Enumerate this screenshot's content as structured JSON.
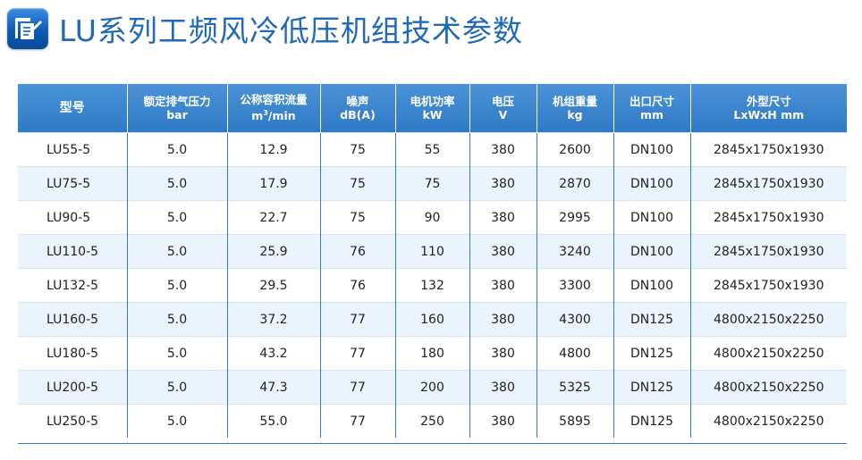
{
  "page": {
    "title": "LU系列工频风冷低压机组技术参数",
    "accent_color": "#1f69b7",
    "header_color": "#3a86cf",
    "icon": "document-pen-icon"
  },
  "table": {
    "headers": [
      {
        "line1": "型号",
        "line2": ""
      },
      {
        "line1": "额定排气压力",
        "line2": "bar"
      },
      {
        "line1": "公称容积流量",
        "line2_pre": "m",
        "line2_sup": "3",
        "line2_post": "/min"
      },
      {
        "line1": "噪声",
        "line2": "dB(A)"
      },
      {
        "line1": "电机功率",
        "line2": "kW"
      },
      {
        "line1": "电压",
        "line2": "V"
      },
      {
        "line1": "机组重量",
        "line2": "kg"
      },
      {
        "line1": "出口尺寸",
        "line2": "mm"
      },
      {
        "line1": "外型尺寸",
        "line2": "LxWxH mm"
      }
    ],
    "rows": [
      [
        "LU55-5",
        "5.0",
        "12.9",
        "75",
        "55",
        "380",
        "2600",
        "DN100",
        "2845x1750x1930"
      ],
      [
        "LU75-5",
        "5.0",
        "17.9",
        "75",
        "75",
        "380",
        "2870",
        "DN100",
        "2845x1750x1930"
      ],
      [
        "LU90-5",
        "5.0",
        "22.7",
        "75",
        "90",
        "380",
        "2995",
        "DN100",
        "2845x1750x1930"
      ],
      [
        "LU110-5",
        "5.0",
        "25.9",
        "76",
        "110",
        "380",
        "3240",
        "DN100",
        "2845x1750x1930"
      ],
      [
        "LU132-5",
        "5.0",
        "29.5",
        "76",
        "132",
        "380",
        "3300",
        "DN100",
        "2845x1750x1930"
      ],
      [
        "LU160-5",
        "5.0",
        "37.2",
        "77",
        "160",
        "380",
        "4300",
        "DN125",
        "4800x2150x2250"
      ],
      [
        "LU180-5",
        "5.0",
        "43.2",
        "77",
        "180",
        "380",
        "4800",
        "DN125",
        "4800x2150x2250"
      ],
      [
        "LU200-5",
        "5.0",
        "47.3",
        "77",
        "200",
        "380",
        "5325",
        "DN125",
        "4800x2150x2250"
      ],
      [
        "LU250-5",
        "5.0",
        "55.0",
        "77",
        "250",
        "380",
        "5895",
        "DN125",
        "4800x2150x2250"
      ]
    ]
  }
}
